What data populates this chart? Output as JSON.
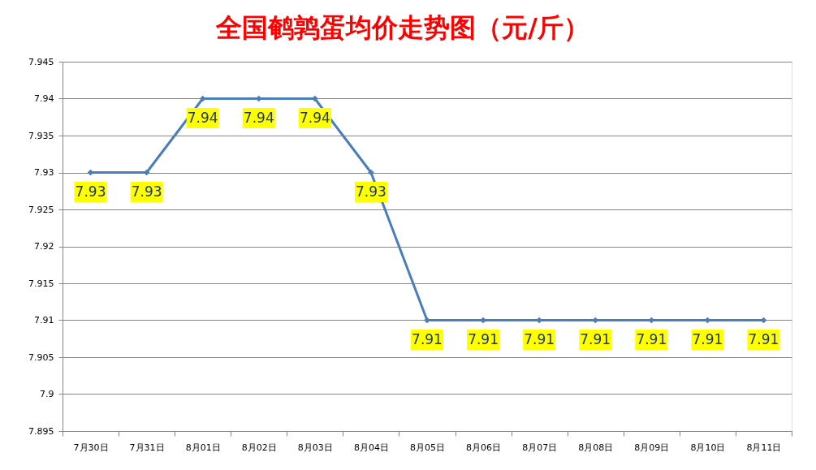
{
  "chart_data": {
    "type": "line",
    "title": "全国鹌鹑蛋均价走势图（元/斤）",
    "categories": [
      "7月30日",
      "7月31日",
      "8月01日",
      "8月02日",
      "8月03日",
      "8月04日",
      "8月05日",
      "8月06日",
      "8月07日",
      "8月08日",
      "8月09日",
      "8月10日",
      "8月11日"
    ],
    "series": [
      {
        "color": "#4a7ebb",
        "values": [
          7.93,
          7.93,
          7.94,
          7.94,
          7.94,
          7.93,
          7.91,
          7.91,
          7.91,
          7.91,
          7.91,
          7.91,
          7.91
        ]
      }
    ],
    "ylim": [
      7.895,
      7.945
    ],
    "yticks": [
      7.895,
      7.9,
      7.905,
      7.91,
      7.915,
      7.92,
      7.925,
      7.93,
      7.935,
      7.94,
      7.945
    ],
    "grid": "y",
    "marker": "diamond",
    "line_style": "solid",
    "data_labels": true
  }
}
